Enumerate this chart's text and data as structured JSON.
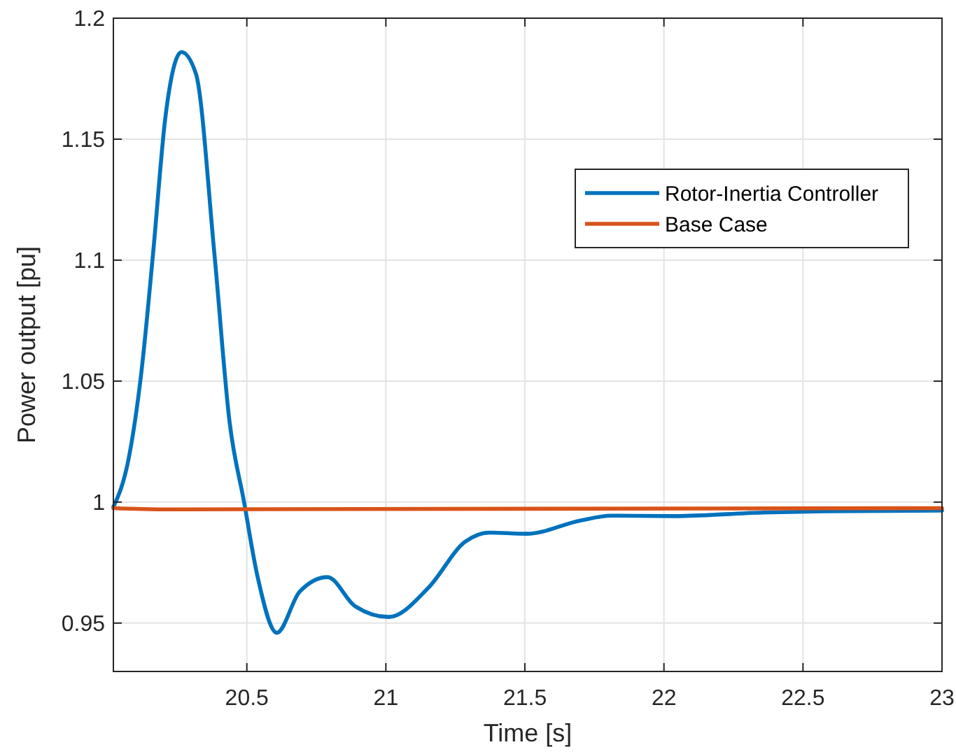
{
  "chart_data": {
    "type": "line",
    "xlabel": "Time [s]",
    "ylabel": "Power output [pu]",
    "xlim": [
      20.02,
      23
    ],
    "xticks": [
      20.5,
      21,
      21.5,
      22,
      22.5,
      23
    ],
    "ylim": [
      0.93,
      1.2
    ],
    "yticks": [
      0.95,
      1,
      1.05,
      1.1,
      1.15,
      1.2
    ],
    "grid": true,
    "legend": "top right",
    "marker": "none",
    "line_style": "solid",
    "series": [
      {
        "name": "Rotor-Inertia Controller",
        "color": "#0072bd",
        "x": [
          20.02,
          20.075,
          20.12,
          20.163,
          20.207,
          20.265,
          20.317,
          20.383,
          20.438,
          20.49,
          20.537,
          20.608,
          20.69,
          20.79,
          20.889,
          21.01,
          21.153,
          21.285,
          21.373,
          21.505,
          21.7,
          21.81,
          22.03,
          22.36,
          22.58,
          23
        ],
        "values": [
          0.998,
          1.018,
          1.053,
          1.103,
          1.159,
          1.186,
          1.177,
          1.103,
          1.033,
          1.0,
          0.97,
          0.946,
          0.963,
          0.969,
          0.957,
          0.9525,
          0.9646,
          0.9836,
          0.9874,
          0.9869,
          0.9924,
          0.9944,
          0.9942,
          0.9957,
          0.9962,
          0.9965
        ]
      },
      {
        "name": "Base Case",
        "color": "#d95319",
        "x": [
          20.02,
          20.2,
          23
        ],
        "values": [
          0.9975,
          0.997,
          0.9975
        ]
      }
    ]
  }
}
